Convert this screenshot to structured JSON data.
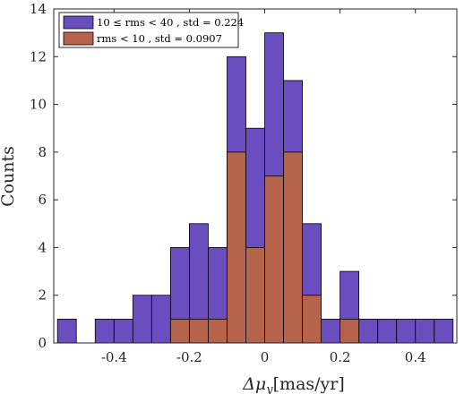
{
  "chart_data": {
    "type": "bar",
    "stacked": false,
    "bin_edges": [
      -0.55,
      -0.5,
      -0.45,
      -0.4,
      -0.35,
      -0.3,
      -0.25,
      -0.2,
      -0.15,
      -0.1,
      -0.05,
      0.0,
      0.05,
      0.1,
      0.15,
      0.2,
      0.25,
      0.3,
      0.35,
      0.4,
      0.45,
      0.5
    ],
    "series": [
      {
        "name": "10 ≤ rms < 40 , std = 0.224",
        "color": "#6a4dbf",
        "values": [
          1,
          0,
          1,
          1,
          2,
          2,
          4,
          5,
          4,
          12,
          9,
          13,
          11,
          5,
          1,
          3,
          1,
          1,
          1,
          1,
          1
        ]
      },
      {
        "name": "rms < 10 , std = 0.0907",
        "color": "#b5634b",
        "values": [
          0,
          0,
          0,
          0,
          0,
          0,
          1,
          1,
          1,
          8,
          4,
          7,
          8,
          2,
          0,
          1,
          0,
          0,
          0,
          0,
          0
        ]
      }
    ],
    "xlabel_symbol": "Δμ",
    "xlabel_sub": "y",
    "xlabel_unit": "[mas/yr]",
    "ylabel": "Counts",
    "xlim": [
      -0.56,
      0.51
    ],
    "ylim": [
      0,
      14
    ],
    "xticks": [
      -0.4,
      -0.2,
      0,
      0.2,
      0.4
    ],
    "xtick_labels": [
      "-0.4",
      "-0.2",
      "0",
      "0.2",
      "0.4"
    ],
    "yticks": [
      0,
      2,
      4,
      6,
      8,
      10,
      12,
      14
    ],
    "ytick_labels": [
      "0",
      "2",
      "4",
      "6",
      "8",
      "10",
      "12",
      "14"
    ],
    "legend_position": "top-left",
    "grid": false
  }
}
